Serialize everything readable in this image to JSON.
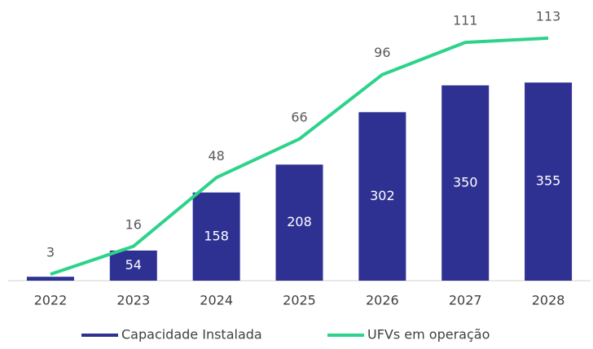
{
  "chart_data": {
    "type": "bar-line",
    "categories": [
      "2022",
      "2023",
      "2024",
      "2025",
      "2026",
      "2027",
      "2028"
    ],
    "series": [
      {
        "name": "Capacidade Instalada",
        "type": "bar",
        "color": "#2e3192",
        "values": [
          7,
          54,
          158,
          208,
          302,
          350,
          355
        ],
        "value_labels": [
          null,
          "54",
          "158",
          "208",
          "302",
          "350",
          "355"
        ]
      },
      {
        "name": "UFVs em operação",
        "type": "line",
        "axis": "y2",
        "color": "#2dd38a",
        "values": [
          3,
          16,
          48,
          66,
          96,
          111,
          113
        ]
      }
    ],
    "ylim": [
      0,
      500
    ],
    "y2lim": [
      0,
      130
    ],
    "legend": "bottom"
  }
}
